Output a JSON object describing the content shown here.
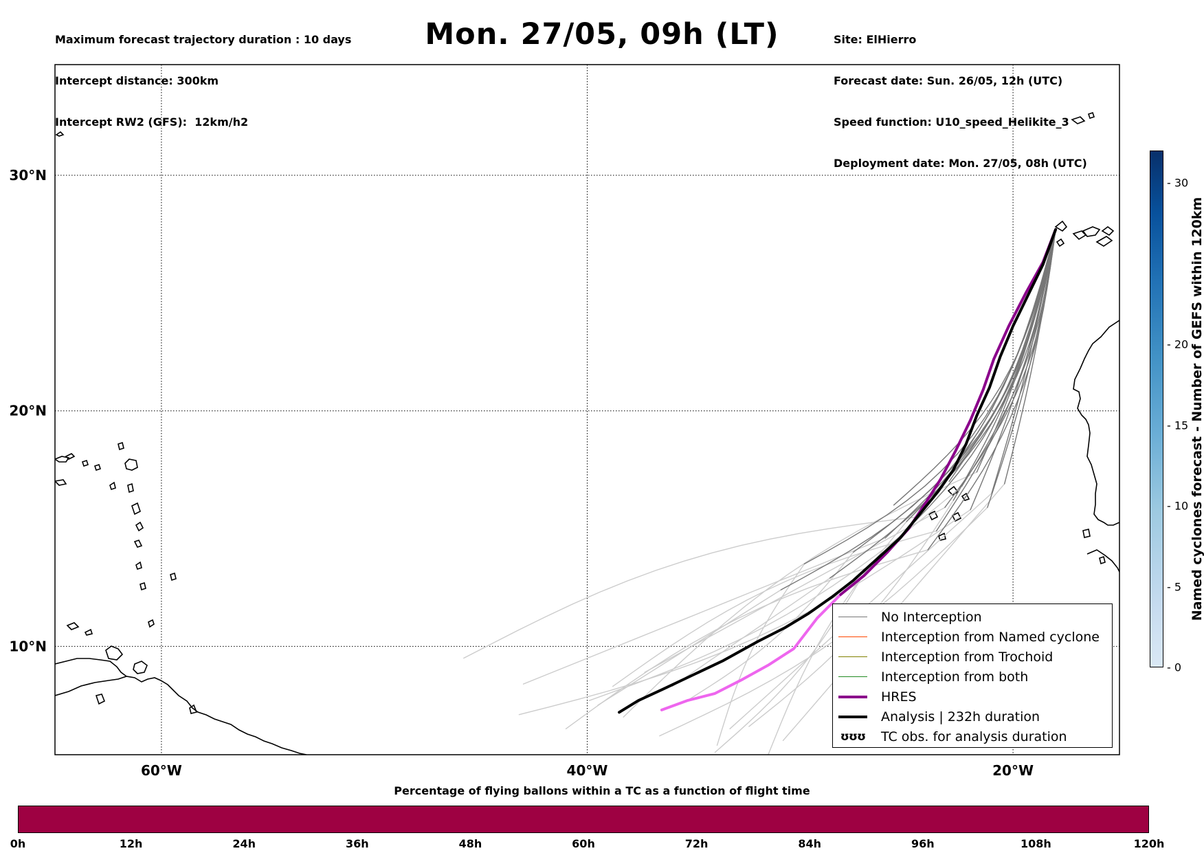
{
  "header": {
    "info_left": [
      "Maximum forecast trajectory duration : 10 days",
      "Intercept distance: 300km",
      "Intercept RW2 (GFS):  12km/h2"
    ],
    "title": "Mon. 27/05, 09h (LT)",
    "info_right": [
      "Site: ElHierro",
      "Forecast date: Sun. 26/05, 12h (UTC)",
      "Speed function: U10_speed_Helikite_3",
      "Deployment date: Mon. 27/05, 08h (UTC)"
    ]
  },
  "map": {
    "lat_labels": [
      "30°N",
      "20°N",
      "10°N"
    ],
    "lon_labels": [
      "60°W",
      "40°W",
      "20°W"
    ],
    "extent": {
      "lon_min": -65,
      "lon_max": -15,
      "lat_min": 5.4,
      "lat_max": 34.7
    },
    "site": {
      "name": "ElHierro",
      "lon": -18.0,
      "lat": 27.7
    },
    "colors": {
      "no_interception": "#777777",
      "named_cyclone": "#ff4500",
      "trochoid": "#808000",
      "both": "#228b22",
      "hres": "#8b008b",
      "hres_late": "#ee66ee",
      "analysis": "#000000",
      "ensemble_late": "#cccccc"
    }
  },
  "legend": {
    "items": [
      {
        "label": "No Interception",
        "style": "gray"
      },
      {
        "label": "Interception from Named cyclone",
        "style": "orange"
      },
      {
        "label": "Interception from Trochoid",
        "style": "olive"
      },
      {
        "label": "Interception from both",
        "style": "green"
      },
      {
        "label": "HRES",
        "style": "purple"
      },
      {
        "label": "Analysis | 232h duration",
        "style": "black"
      },
      {
        "label": "TC obs. for analysis duration",
        "style": "tc",
        "symbol": "ʊʊʊ"
      }
    ]
  },
  "bottom_bar": {
    "title": "Percentage of flying ballons within a TC as a function of flight time",
    "ticks": [
      "0h",
      "12h",
      "24h",
      "36h",
      "48h",
      "60h",
      "72h",
      "84h",
      "96h",
      "108h",
      "120h"
    ],
    "fill_color": "#9e0142"
  },
  "colorbar": {
    "label": "Named cyclones forecast - Number of GEFS within 120km",
    "ticks": [
      "0",
      "5",
      "10",
      "15",
      "20",
      "30"
    ],
    "range": [
      0,
      32
    ]
  }
}
